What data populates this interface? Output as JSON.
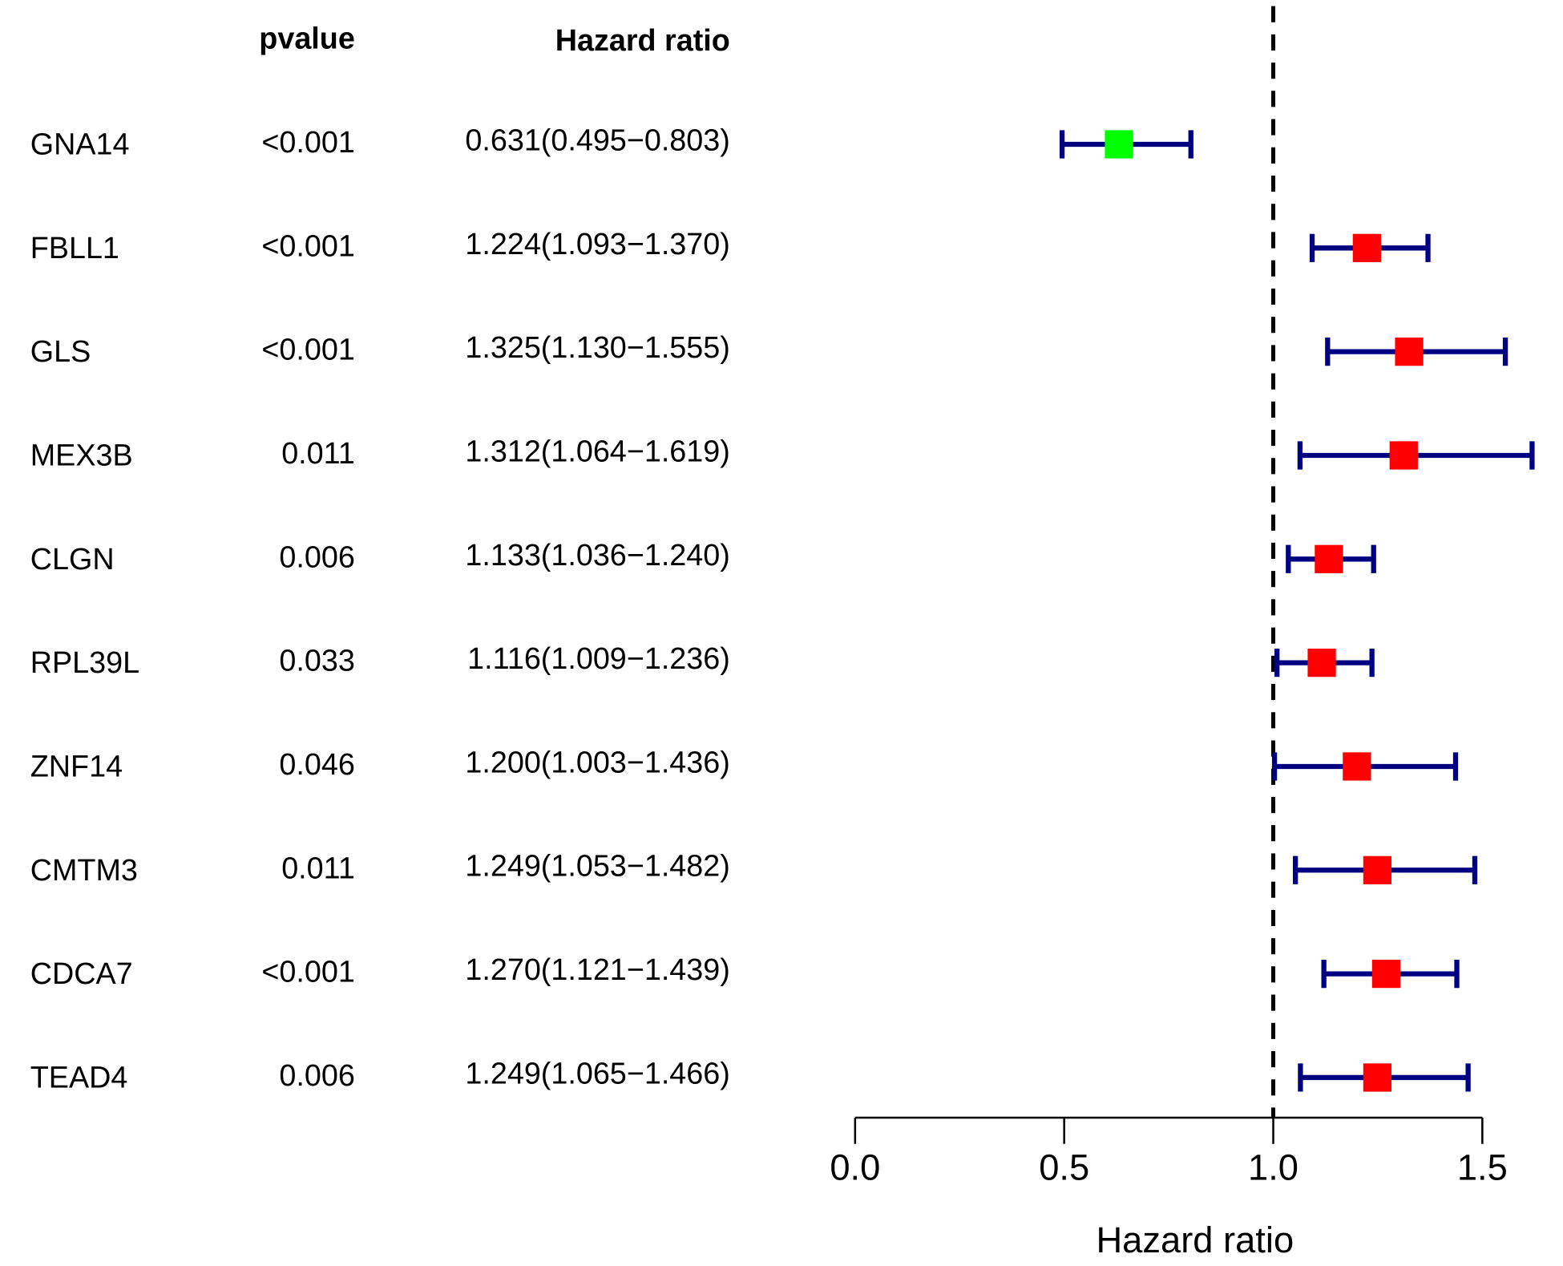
{
  "chart_data": {
    "type": "forest",
    "columns": [
      "pvalue",
      "Hazard ratio"
    ],
    "categories": [
      "GNA14",
      "FBLL1",
      "GLS",
      "MEX3B",
      "CLGN",
      "RPL39L",
      "ZNF14",
      "CMTM3",
      "CDCA7",
      "TEAD4"
    ],
    "pvalues": [
      "<0.001",
      "<0.001",
      "<0.001",
      "0.011",
      "0.006",
      "0.033",
      "0.046",
      "0.011",
      "<0.001",
      "0.006"
    ],
    "values": [
      0.631,
      1.224,
      1.325,
      1.312,
      1.133,
      1.116,
      1.2,
      1.249,
      1.27,
      1.249
    ],
    "lower": [
      0.495,
      1.093,
      1.13,
      1.064,
      1.036,
      1.009,
      1.003,
      1.053,
      1.121,
      1.065
    ],
    "upper": [
      0.803,
      1.37,
      1.555,
      1.619,
      1.24,
      1.236,
      1.436,
      1.482,
      1.439,
      1.466
    ],
    "value_labels": [
      "0.631(0.495−0.803)",
      "1.224(1.093−1.370)",
      "1.325(1.130−1.555)",
      "1.312(1.064−1.619)",
      "1.133(1.036−1.240)",
      "1.116(1.009−1.236)",
      "1.200(1.003−1.436)",
      "1.249(1.053−1.482)",
      "1.270(1.121−1.439)",
      "1.249(1.065−1.466)"
    ],
    "colors": [
      "#00ff00",
      "#ff0000",
      "#ff0000",
      "#ff0000",
      "#ff0000",
      "#ff0000",
      "#ff0000",
      "#ff0000",
      "#ff0000",
      "#ff0000"
    ],
    "ci_color": "#000080",
    "reference_line": 1,
    "xlim": [
      0,
      1.5
    ],
    "xticks": [
      {
        "value": 0,
        "label": "0.0"
      },
      {
        "value": 0.5,
        "label": "0.5"
      },
      {
        "value": 1,
        "label": "1.0"
      },
      {
        "value": 1.5,
        "label": "1.5"
      }
    ],
    "xlabel": "Hazard ratio"
  }
}
